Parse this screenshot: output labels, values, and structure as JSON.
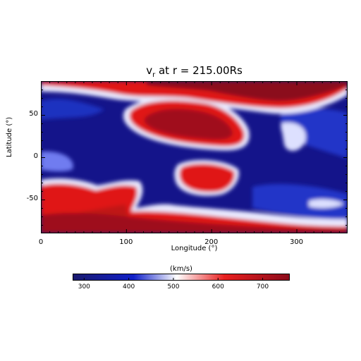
{
  "chart_data": {
    "type": "heatmap",
    "title": "v",
    "title_sub": "r",
    "title_rest": " at r = 215.00Rs",
    "xlabel": "Longitude (°)",
    "ylabel": "Latitude (°)",
    "xlim": [
      0,
      360
    ],
    "ylim": [
      -90,
      90
    ],
    "xticks": [
      "0",
      "100",
      "200",
      "300"
    ],
    "xtick_values": [
      0,
      100,
      200,
      300
    ],
    "yticks": [
      "-50",
      "0",
      "50"
    ],
    "ytick_values": [
      -50,
      0,
      50
    ],
    "colorbar": {
      "label": "(km/s)",
      "range": [
        275,
        760
      ],
      "ticks": [
        "300",
        "400",
        "500",
        "600",
        "700"
      ],
      "tick_values": [
        300,
        400,
        500,
        600,
        700
      ],
      "colors": [
        "#1a1a6e",
        "#1020c8",
        "#ffffff",
        "#e82020",
        "#8b0a1a"
      ]
    },
    "fast_wind_regions": [
      {
        "lon": [
          0,
          360
        ],
        "lat": [
          72,
          90
        ]
      },
      {
        "lon": [
          100,
          245
        ],
        "lat": [
          20,
          68
        ]
      },
      {
        "lon": [
          175,
          235
        ],
        "lat": [
          -38,
          -8
        ]
      },
      {
        "lon": [
          0,
          360
        ],
        "lat": [
          -90,
          -72
        ]
      },
      {
        "lon": [
          0,
          110
        ],
        "lat": [
          -80,
          -30
        ]
      },
      {
        "lon": [
          270,
          360
        ],
        "lat": [
          65,
          90
        ]
      }
    ],
    "slow_wind_background": 310
  }
}
